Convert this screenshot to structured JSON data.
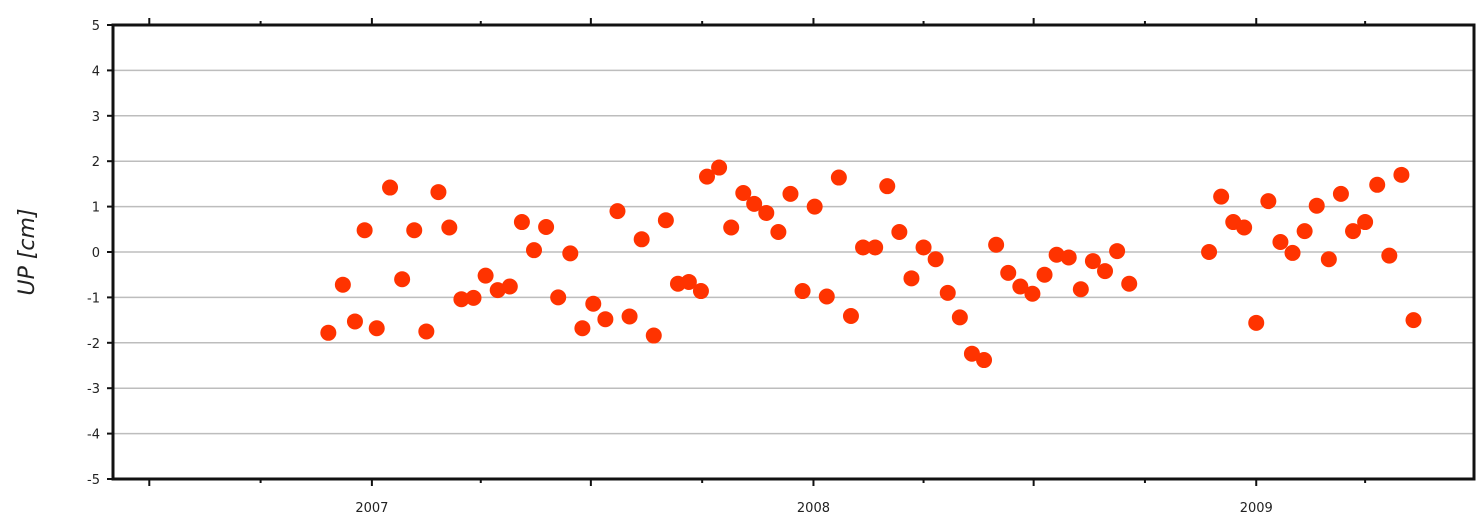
{
  "chart_data": {
    "type": "scatter",
    "ylabel": "UP [cm]",
    "xlabel": "",
    "ylim": [
      -5,
      5
    ],
    "yticks": [
      5,
      4,
      3,
      2,
      1,
      0,
      -1,
      -2,
      -3,
      -4,
      -5
    ],
    "xlim": [
      "2006-06-01",
      "2009-06-30"
    ],
    "xticks": [
      {
        "date": "2007-01-01",
        "label": "2007"
      },
      {
        "date": "2008-01-01",
        "label": "2008"
      },
      {
        "date": "2009-01-01",
        "label": "2009"
      }
    ],
    "grid": "horizontal",
    "marker_color": "#ff3300",
    "points": [
      {
        "x": "2006-11-26",
        "y": -1.78
      },
      {
        "x": "2006-12-08",
        "y": -0.72
      },
      {
        "x": "2006-12-18",
        "y": -1.53
      },
      {
        "x": "2006-12-26",
        "y": 0.48
      },
      {
        "x": "2007-01-05",
        "y": -1.68
      },
      {
        "x": "2007-01-16",
        "y": 1.42
      },
      {
        "x": "2007-01-26",
        "y": -0.6
      },
      {
        "x": "2007-02-05",
        "y": 0.48
      },
      {
        "x": "2007-02-15",
        "y": -1.75
      },
      {
        "x": "2007-02-25",
        "y": 1.32
      },
      {
        "x": "2007-03-06",
        "y": 0.54
      },
      {
        "x": "2007-03-16",
        "y": -1.04
      },
      {
        "x": "2007-03-26",
        "y": -1.01
      },
      {
        "x": "2007-04-05",
        "y": -0.52
      },
      {
        "x": "2007-04-15",
        "y": -0.84
      },
      {
        "x": "2007-04-25",
        "y": -0.76
      },
      {
        "x": "2007-05-05",
        "y": 0.66
      },
      {
        "x": "2007-05-15",
        "y": 0.04
      },
      {
        "x": "2007-05-25",
        "y": 0.55
      },
      {
        "x": "2007-06-04",
        "y": -1.0
      },
      {
        "x": "2007-06-14",
        "y": -0.03
      },
      {
        "x": "2007-06-24",
        "y": -1.68
      },
      {
        "x": "2007-07-03",
        "y": -1.14
      },
      {
        "x": "2007-07-13",
        "y": -1.48
      },
      {
        "x": "2007-07-23",
        "y": 0.9
      },
      {
        "x": "2007-08-02",
        "y": -1.42
      },
      {
        "x": "2007-08-12",
        "y": 0.28
      },
      {
        "x": "2007-08-22",
        "y": -1.84
      },
      {
        "x": "2007-09-01",
        "y": 0.7
      },
      {
        "x": "2007-09-11",
        "y": -0.7
      },
      {
        "x": "2007-09-20",
        "y": -0.66
      },
      {
        "x": "2007-09-30",
        "y": -0.86
      },
      {
        "x": "2007-10-05",
        "y": 1.66
      },
      {
        "x": "2007-10-15",
        "y": 1.86
      },
      {
        "x": "2007-10-25",
        "y": 0.54
      },
      {
        "x": "2007-11-04",
        "y": 1.3
      },
      {
        "x": "2007-11-13",
        "y": 1.06
      },
      {
        "x": "2007-11-23",
        "y": 0.86
      },
      {
        "x": "2007-12-03",
        "y": 0.44
      },
      {
        "x": "2007-12-13",
        "y": 1.28
      },
      {
        "x": "2007-12-23",
        "y": -0.86
      },
      {
        "x": "2008-01-02",
        "y": 1.0
      },
      {
        "x": "2008-01-12",
        "y": -0.98
      },
      {
        "x": "2008-01-22",
        "y": 1.64
      },
      {
        "x": "2008-02-01",
        "y": -1.41
      },
      {
        "x": "2008-02-11",
        "y": 0.1
      },
      {
        "x": "2008-02-21",
        "y": 0.1
      },
      {
        "x": "2008-03-02",
        "y": 1.45
      },
      {
        "x": "2008-03-12",
        "y": 0.44
      },
      {
        "x": "2008-03-22",
        "y": -0.58
      },
      {
        "x": "2008-04-01",
        "y": 0.1
      },
      {
        "x": "2008-04-11",
        "y": -0.16
      },
      {
        "x": "2008-04-21",
        "y": -0.9
      },
      {
        "x": "2008-05-01",
        "y": -1.44
      },
      {
        "x": "2008-05-11",
        "y": -2.24
      },
      {
        "x": "2008-05-21",
        "y": -2.38
      },
      {
        "x": "2008-05-31",
        "y": 0.16
      },
      {
        "x": "2008-06-10",
        "y": -0.46
      },
      {
        "x": "2008-06-20",
        "y": -0.76
      },
      {
        "x": "2008-06-30",
        "y": -0.92
      },
      {
        "x": "2008-07-10",
        "y": -0.5
      },
      {
        "x": "2008-07-20",
        "y": -0.06
      },
      {
        "x": "2008-07-30",
        "y": -0.12
      },
      {
        "x": "2008-08-09",
        "y": -0.82
      },
      {
        "x": "2008-08-19",
        "y": -0.2
      },
      {
        "x": "2008-08-29",
        "y": -0.42
      },
      {
        "x": "2008-09-08",
        "y": 0.02
      },
      {
        "x": "2008-09-18",
        "y": -0.7
      },
      {
        "x": "2008-11-23",
        "y": 0.0
      },
      {
        "x": "2008-12-03",
        "y": 1.22
      },
      {
        "x": "2008-12-13",
        "y": 0.66
      },
      {
        "x": "2008-12-22",
        "y": 0.54
      },
      {
        "x": "2009-01-01",
        "y": -1.56
      },
      {
        "x": "2009-01-11",
        "y": 1.12
      },
      {
        "x": "2009-01-21",
        "y": 0.22
      },
      {
        "x": "2009-01-31",
        "y": -0.02
      },
      {
        "x": "2009-02-10",
        "y": 0.46
      },
      {
        "x": "2009-02-20",
        "y": 1.02
      },
      {
        "x": "2009-03-02",
        "y": -0.16
      },
      {
        "x": "2009-03-12",
        "y": 1.28
      },
      {
        "x": "2009-03-22",
        "y": 0.46
      },
      {
        "x": "2009-04-01",
        "y": 0.66
      },
      {
        "x": "2009-04-11",
        "y": 1.48
      },
      {
        "x": "2009-04-21",
        "y": -0.08
      },
      {
        "x": "2009-05-01",
        "y": 1.7
      },
      {
        "x": "2009-05-11",
        "y": -1.5
      }
    ]
  }
}
